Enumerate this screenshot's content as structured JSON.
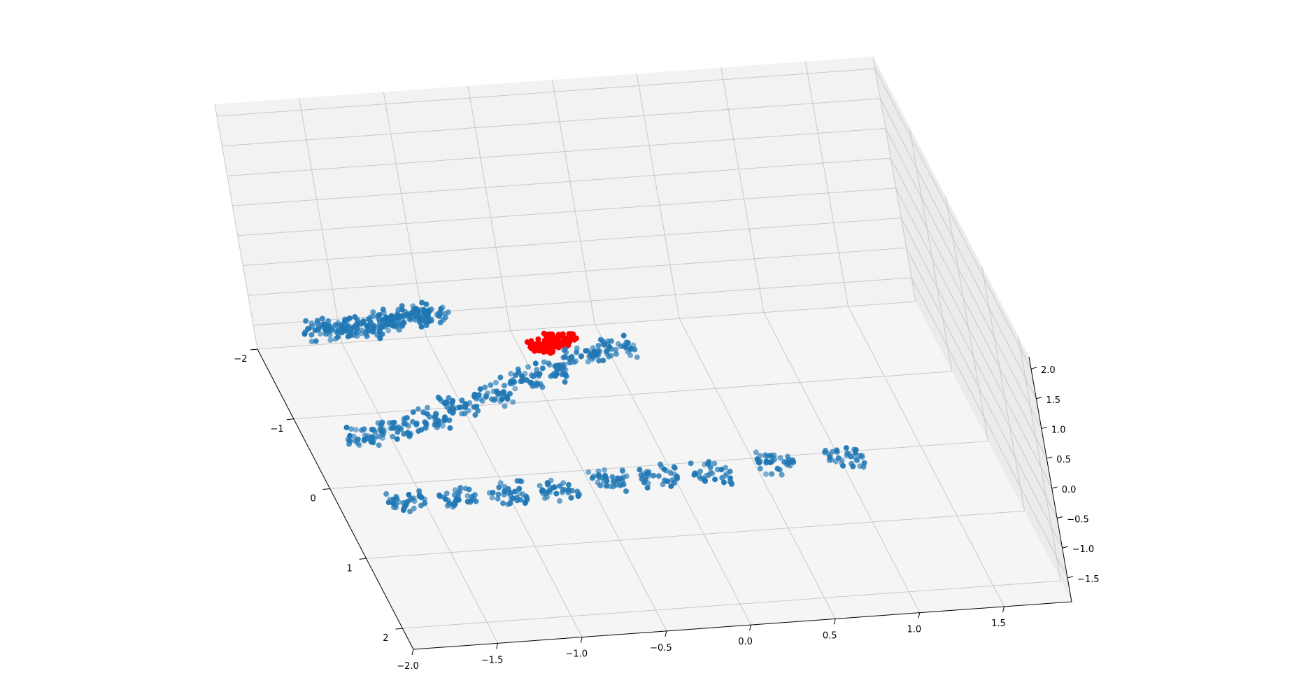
{
  "chart_data": {
    "type": "scatter",
    "projection": "3d",
    "title": "",
    "xlabel": "",
    "ylabel": "",
    "zlabel": "",
    "grid": true,
    "xlim": [
      -2.0,
      1.9
    ],
    "ylim": [
      -2.0,
      2.3
    ],
    "zlim": [
      -1.9,
      2.2
    ],
    "x_ticks": [
      -2.0,
      -1.5,
      -1.0,
      -0.5,
      0.0,
      0.5,
      1.0,
      1.5
    ],
    "x_tick_labels": [
      "−2.0",
      "−1.5",
      "−1.0",
      "−0.5",
      "0.0",
      "0.5",
      "1.0",
      "1.5"
    ],
    "y_ticks": [
      -2,
      -1,
      0,
      1,
      2
    ],
    "y_tick_labels": [
      "−2",
      "−1",
      "0",
      "1",
      "2"
    ],
    "z_ticks": [
      -1.5,
      -1.0,
      -0.5,
      0.0,
      0.5,
      1.0,
      1.5,
      2.0
    ],
    "z_tick_labels": [
      "−1.5",
      "−1.0",
      "−0.5",
      "0.0",
      "0.5",
      "1.0",
      "1.5",
      "2.0"
    ],
    "colors": {
      "base": "#1f77b4",
      "highlight": "#ff0000",
      "grid": "#c8c8c8",
      "pane": "#f2f2f2"
    },
    "series": [
      {
        "color": "#1f77b4",
        "clusters": [
          {
            "x": -1.85,
            "y": -0.2,
            "z": 0.5
          },
          {
            "x": -1.75,
            "y": -0.1,
            "z": 0.6
          },
          {
            "x": -1.65,
            "y": 0.0,
            "z": 0.7
          },
          {
            "x": -1.55,
            "y": 0.0,
            "z": 0.8
          },
          {
            "x": -1.45,
            "y": 0.1,
            "z": 0.9
          },
          {
            "x": -1.35,
            "y": 0.1,
            "z": 1.0
          },
          {
            "x": -1.25,
            "y": 0.2,
            "z": 1.1
          },
          {
            "x": -1.8,
            "y": 0.4,
            "z": -0.6
          },
          {
            "x": -1.6,
            "y": 0.4,
            "z": -0.5
          },
          {
            "x": -1.4,
            "y": 0.4,
            "z": -0.4
          },
          {
            "x": -1.2,
            "y": 0.3,
            "z": -0.3
          },
          {
            "x": -1.0,
            "y": 0.3,
            "z": -0.2
          },
          {
            "x": -0.8,
            "y": 0.2,
            "z": -0.1
          },
          {
            "x": -0.6,
            "y": 0.2,
            "z": 0.0
          },
          {
            "x": -0.4,
            "y": 0.1,
            "z": 0.1
          },
          {
            "x": -0.2,
            "y": 0.1,
            "z": 0.2
          },
          {
            "x": -1.7,
            "y": 1.0,
            "z": -1.0
          },
          {
            "x": -1.4,
            "y": 1.0,
            "z": -1.0
          },
          {
            "x": -1.1,
            "y": 1.0,
            "z": -1.0
          },
          {
            "x": -0.8,
            "y": 1.0,
            "z": -1.0
          },
          {
            "x": -0.5,
            "y": 1.0,
            "z": -0.9
          },
          {
            "x": -0.2,
            "y": 1.0,
            "z": -0.9
          },
          {
            "x": 0.1,
            "y": 1.0,
            "z": -0.9
          },
          {
            "x": 0.5,
            "y": 1.0,
            "z": -0.8
          },
          {
            "x": 0.9,
            "y": 1.0,
            "z": -0.8
          }
        ]
      },
      {
        "color": "#ff0000",
        "clusters": [
          {
            "x": -0.6,
            "y": 0.0,
            "z": 0.2
          },
          {
            "x": -0.5,
            "y": 0.0,
            "z": 0.3
          }
        ]
      }
    ]
  }
}
